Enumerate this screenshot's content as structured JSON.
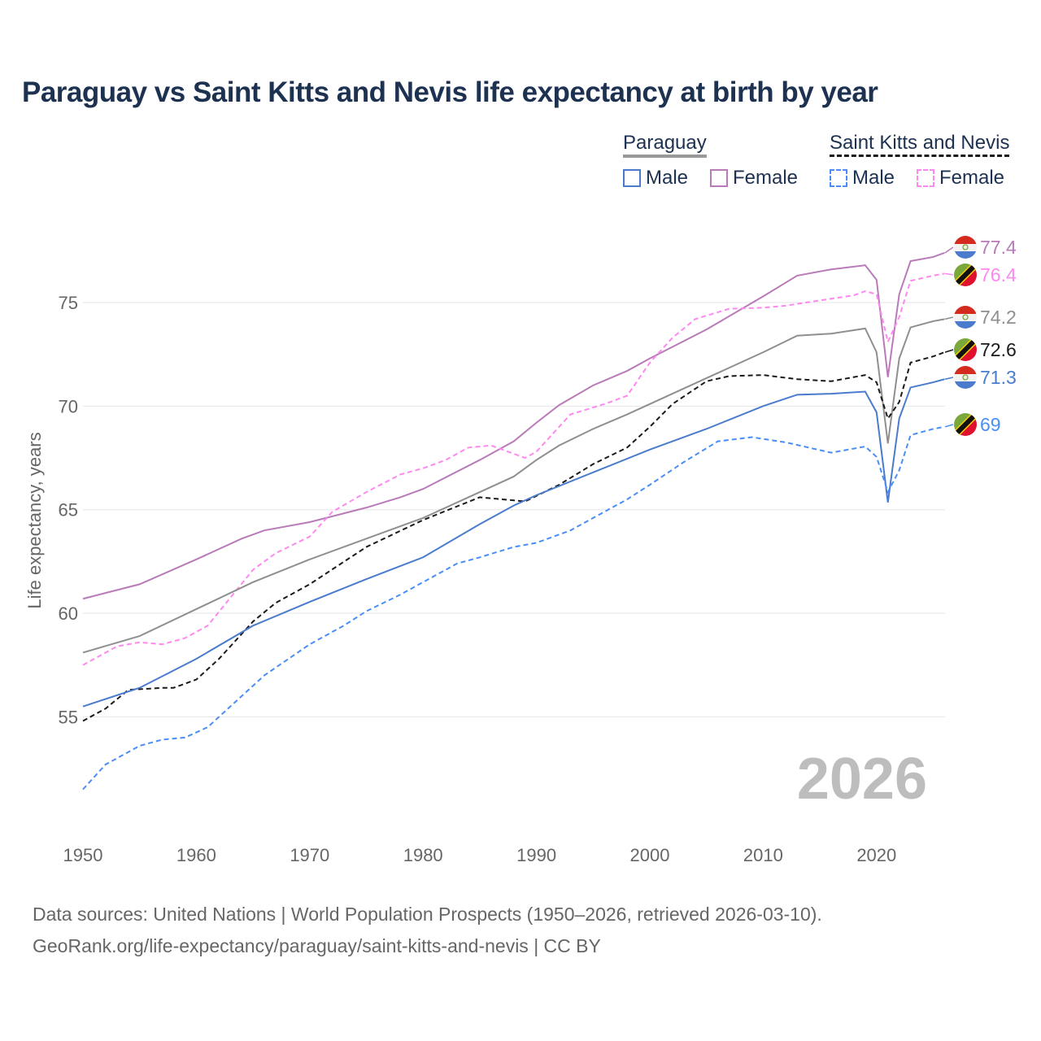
{
  "chart_data": {
    "type": "line",
    "title": "Paraguay vs Saint Kitts and Nevis life expectancy at birth by year",
    "xlabel": "",
    "ylabel": "Life expectancy, years",
    "xlim": [
      1950,
      2026
    ],
    "ylim": [
      50,
      79
    ],
    "xticks": [
      1950,
      1960,
      1970,
      1980,
      1990,
      2000,
      2010,
      2020
    ],
    "yticks": [
      55,
      60,
      65,
      70,
      75
    ],
    "grid": true,
    "legend_placement": "top-right",
    "year_label": "2026",
    "legend": {
      "groups": [
        {
          "name": "Paraguay",
          "items": [
            "Male",
            "Female"
          ]
        },
        {
          "name": "Saint Kitts and Nevis",
          "items": [
            "Male",
            "Female"
          ]
        }
      ]
    },
    "series": [
      {
        "name": "Paraguay Female",
        "country": "Paraguay",
        "color": "#b87bb8",
        "dash": false,
        "end_label": "77.4",
        "x": [
          1950,
          1955,
          1960,
          1964,
          1966,
          1970,
          1975,
          1978,
          1980,
          1985,
          1988,
          1990,
          1992,
          1995,
          1998,
          2000,
          2005,
          2010,
          2013,
          2016,
          2019,
          2020,
          2021,
          2022,
          2023,
          2025,
          2026
        ],
        "y": [
          60.7,
          61.4,
          62.6,
          63.6,
          64.0,
          64.4,
          65.1,
          65.6,
          66.0,
          67.4,
          68.3,
          69.2,
          70.05,
          71.0,
          71.7,
          72.3,
          73.7,
          75.3,
          76.3,
          76.6,
          76.8,
          76.1,
          71.4,
          75.4,
          77.0,
          77.2,
          77.4
        ]
      },
      {
        "name": "Saint Kitts and Nevis Female",
        "country": "Saint Kitts and Nevis",
        "color": "#ff88f0",
        "dash": true,
        "end_label": "76.4",
        "x": [
          1950,
          1953,
          1955,
          1957,
          1959,
          1961,
          1963,
          1965,
          1967,
          1970,
          1972,
          1975,
          1978,
          1980,
          1982,
          1984,
          1986,
          1988,
          1989,
          1990,
          1993,
          1996,
          1998,
          2000,
          2002,
          2004,
          2007,
          2010,
          2012,
          2015,
          2018,
          2019,
          2020,
          2021,
          2022,
          2023,
          2025,
          2026
        ],
        "y": [
          57.5,
          58.4,
          58.6,
          58.5,
          58.8,
          59.4,
          60.75,
          62.1,
          62.9,
          63.7,
          64.9,
          65.85,
          66.7,
          67.0,
          67.4,
          68.0,
          68.1,
          67.7,
          67.5,
          67.8,
          69.6,
          70.1,
          70.5,
          72.1,
          73.3,
          74.2,
          74.7,
          74.75,
          74.85,
          75.1,
          75.35,
          75.55,
          75.4,
          73.1,
          74.3,
          76.05,
          76.3,
          76.4
        ]
      },
      {
        "name": "Paraguay",
        "country": "Paraguay",
        "color": "#8f8f8f",
        "dash": false,
        "end_label": "74.2",
        "x": [
          1950,
          1955,
          1960,
          1965,
          1970,
          1975,
          1980,
          1985,
          1988,
          1990,
          1992,
          1995,
          1998,
          2000,
          2005,
          2010,
          2013,
          2016,
          2019,
          2020,
          2021,
          2022,
          2023,
          2025,
          2026
        ],
        "y": [
          58.1,
          58.9,
          60.2,
          61.5,
          62.6,
          63.6,
          64.6,
          65.85,
          66.6,
          67.4,
          68.1,
          68.9,
          69.6,
          70.1,
          71.35,
          72.6,
          73.4,
          73.5,
          73.75,
          72.6,
          68.2,
          72.3,
          73.8,
          74.1,
          74.2
        ]
      },
      {
        "name": "Saint Kitts and Nevis",
        "country": "Saint Kitts and Nevis",
        "color": "#1a1a1a",
        "dash": true,
        "end_label": "72.6",
        "x": [
          1950,
          1952,
          1954,
          1957,
          1958,
          1960,
          1962,
          1965,
          1967,
          1970,
          1975,
          1980,
          1985,
          1987,
          1989,
          1992,
          1995,
          1998,
          2000,
          2002,
          2005,
          2007,
          2010,
          2013,
          2016,
          2019,
          2020,
          2021,
          2022,
          2023,
          2025,
          2026
        ],
        "y": [
          54.8,
          55.4,
          56.3,
          56.4,
          56.4,
          56.8,
          57.8,
          59.6,
          60.5,
          61.4,
          63.2,
          64.5,
          65.6,
          65.5,
          65.4,
          66.2,
          67.2,
          68.0,
          69.0,
          70.1,
          71.2,
          71.45,
          71.5,
          71.3,
          71.2,
          71.5,
          71.15,
          69.4,
          70.2,
          72.1,
          72.4,
          72.6
        ]
      },
      {
        "name": "Paraguay Male",
        "country": "Paraguay",
        "color": "#4a7bcc",
        "dash": false,
        "end_label": "71.3",
        "x": [
          1950,
          1955,
          1960,
          1965,
          1970,
          1975,
          1980,
          1985,
          1988,
          1990,
          1995,
          2000,
          2005,
          2010,
          2013,
          2016,
          2019,
          2020,
          2021,
          2022,
          2023,
          2025,
          2026
        ],
        "y": [
          55.5,
          56.4,
          57.8,
          59.4,
          60.55,
          61.65,
          62.7,
          64.3,
          65.2,
          65.7,
          66.8,
          67.9,
          68.9,
          70.0,
          70.55,
          70.6,
          70.7,
          69.7,
          65.35,
          69.4,
          70.9,
          71.15,
          71.3
        ]
      },
      {
        "name": "Saint Kitts and Nevis Male",
        "country": "Saint Kitts and Nevis",
        "color": "#4a8ef5",
        "dash": true,
        "end_label": "69",
        "x": [
          1950,
          1952,
          1955,
          1957,
          1959,
          1961,
          1963,
          1966,
          1970,
          1973,
          1975,
          1978,
          1980,
          1983,
          1985,
          1988,
          1990,
          1993,
          1996,
          1998,
          2000,
          2003,
          2006,
          2009,
          2012,
          2016,
          2019,
          2020,
          2021,
          2022,
          2023,
          2025,
          2026
        ],
        "y": [
          51.5,
          52.7,
          53.6,
          53.9,
          54.0,
          54.5,
          55.5,
          57.0,
          58.5,
          59.4,
          60.1,
          60.9,
          61.5,
          62.4,
          62.7,
          63.2,
          63.4,
          64.0,
          64.9,
          65.5,
          66.2,
          67.3,
          68.3,
          68.5,
          68.25,
          67.75,
          68.05,
          67.55,
          65.85,
          66.9,
          68.6,
          68.9,
          69.0
        ]
      }
    ]
  },
  "footer": {
    "line1": "Data sources: United Nations | World Population Prospects (1950–2026, retrieved 2026-03-10).",
    "line2": "GeoRank.org/life-expectancy/paraguay/saint-kitts-and-nevis | CC BY"
  }
}
